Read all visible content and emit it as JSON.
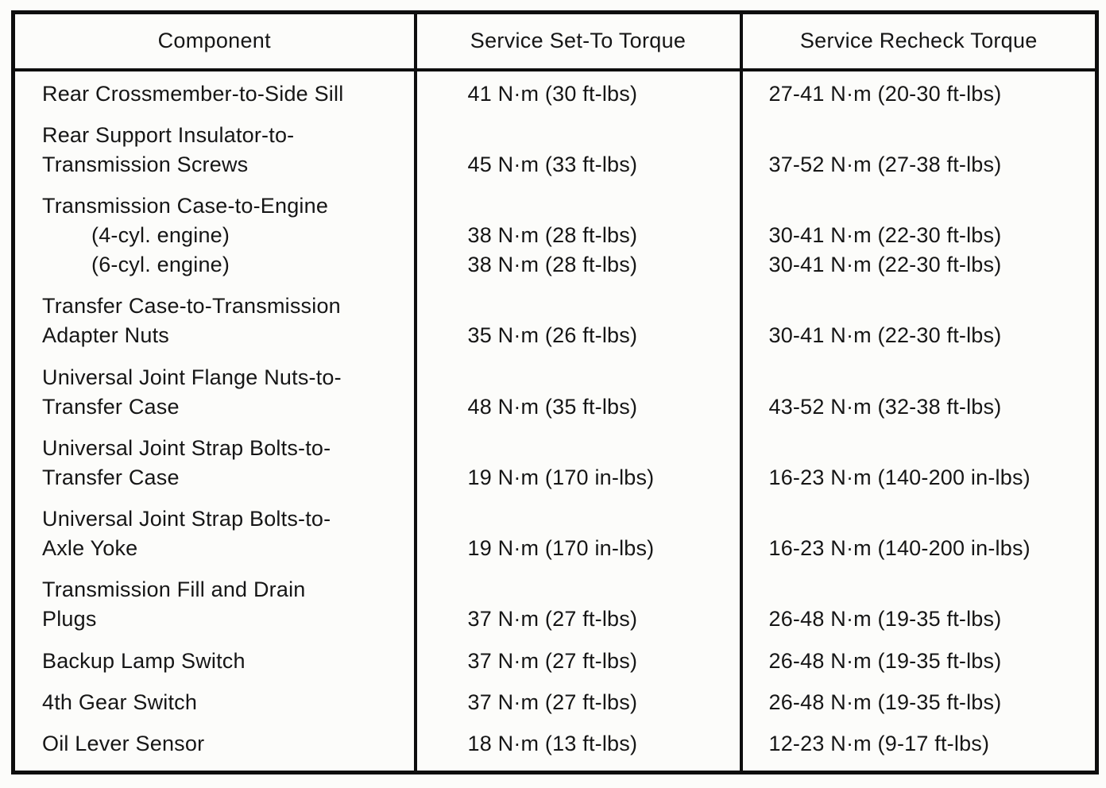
{
  "colors": {
    "ink": "#161616",
    "rule": "#0e0e0e",
    "paper": "#fcfcfa"
  },
  "table": {
    "headers": [
      "Component",
      "Service Set-To Torque",
      "Service Recheck Torque"
    ],
    "rows": [
      {
        "lines": [
          {
            "component": "Rear Crossmember-to-Side Sill",
            "indent": false,
            "set_to": "41 N·m (30 ft-lbs)",
            "recheck": "27-41 N·m (20-30 ft-lbs)"
          }
        ]
      },
      {
        "lines": [
          {
            "component": "Rear Support Insulator-to-",
            "indent": false,
            "set_to": "",
            "recheck": ""
          },
          {
            "component": "Transmission Screws",
            "indent": false,
            "set_to": "45 N·m (33 ft-lbs)",
            "recheck": "37-52 N·m (27-38 ft-lbs)"
          }
        ]
      },
      {
        "lines": [
          {
            "component": "Transmission Case-to-Engine",
            "indent": false,
            "set_to": "",
            "recheck": ""
          },
          {
            "component": "(4-cyl. engine)",
            "indent": true,
            "set_to": "38 N·m (28 ft-lbs)",
            "recheck": "30-41 N·m (22-30 ft-lbs)"
          },
          {
            "component": "(6-cyl. engine)",
            "indent": true,
            "set_to": "38 N·m (28 ft-lbs)",
            "recheck": "30-41 N·m (22-30 ft-lbs)"
          }
        ]
      },
      {
        "lines": [
          {
            "component": "Transfer Case-to-Transmission",
            "indent": false,
            "set_to": "",
            "recheck": ""
          },
          {
            "component": "Adapter Nuts",
            "indent": false,
            "set_to": "35 N·m (26 ft-lbs)",
            "recheck": "30-41 N·m (22-30 ft-lbs)"
          }
        ]
      },
      {
        "lines": [
          {
            "component": "Universal Joint Flange Nuts-to-",
            "indent": false,
            "set_to": "",
            "recheck": ""
          },
          {
            "component": "Transfer Case",
            "indent": false,
            "set_to": "48 N·m (35 ft-lbs)",
            "recheck": "43-52 N·m (32-38 ft-lbs)"
          }
        ]
      },
      {
        "lines": [
          {
            "component": "Universal Joint Strap Bolts-to-",
            "indent": false,
            "set_to": "",
            "recheck": ""
          },
          {
            "component": "Transfer Case",
            "indent": false,
            "set_to": "19 N·m (170 in-lbs)",
            "recheck": "16-23 N·m (140-200 in-lbs)"
          }
        ]
      },
      {
        "lines": [
          {
            "component": "Universal Joint Strap Bolts-to-",
            "indent": false,
            "set_to": "",
            "recheck": ""
          },
          {
            "component": "Axle Yoke",
            "indent": false,
            "set_to": "19 N·m (170 in-lbs)",
            "recheck": "16-23 N·m (140-200 in-lbs)"
          }
        ]
      },
      {
        "lines": [
          {
            "component": "Transmission Fill and Drain",
            "indent": false,
            "set_to": "",
            "recheck": ""
          },
          {
            "component": "Plugs",
            "indent": false,
            "set_to": "37 N·m (27 ft-lbs)",
            "recheck": "26-48 N·m (19-35 ft-lbs)"
          }
        ]
      },
      {
        "lines": [
          {
            "component": "Backup Lamp Switch",
            "indent": false,
            "set_to": "37 N·m (27 ft-lbs)",
            "recheck": "26-48 N·m (19-35 ft-lbs)"
          }
        ]
      },
      {
        "lines": [
          {
            "component": "4th Gear Switch",
            "indent": false,
            "set_to": "37 N·m (27 ft-lbs)",
            "recheck": "26-48 N·m (19-35 ft-lbs)"
          }
        ]
      },
      {
        "lines": [
          {
            "component": "Oil Lever Sensor",
            "indent": false,
            "set_to": "18 N·m (13 ft-lbs)",
            "recheck": "12-23 N·m (9-17 ft-lbs)"
          }
        ]
      }
    ]
  }
}
